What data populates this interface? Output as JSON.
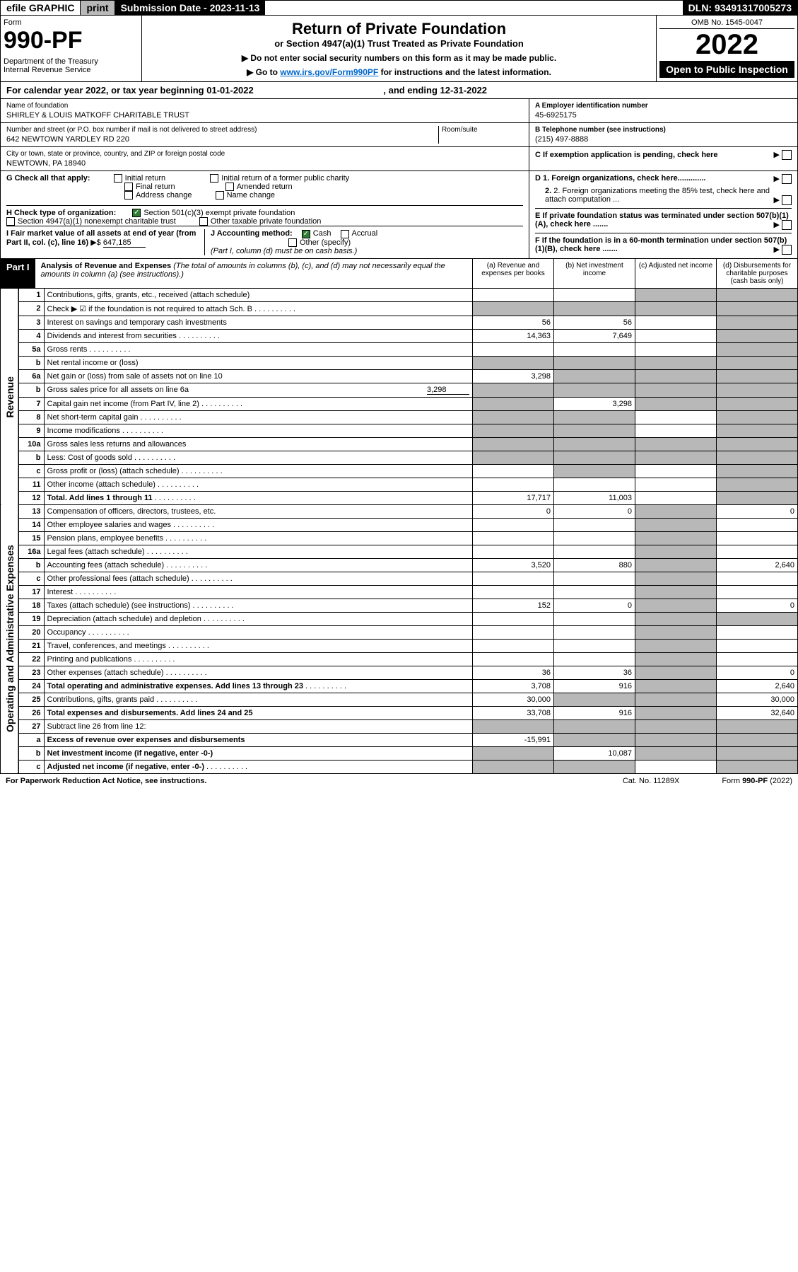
{
  "topbar": {
    "efile": "efile GRAPHIC",
    "print": "print",
    "subdate": "Submission Date - 2023-11-13",
    "dln": "DLN: 93491317005273"
  },
  "header": {
    "form_label": "Form",
    "form_no": "990-PF",
    "dept": "Department of the Treasury\nInternal Revenue Service",
    "title": "Return of Private Foundation",
    "subtitle": "or Section 4947(a)(1) Trust Treated as Private Foundation",
    "note1": "▶ Do not enter social security numbers on this form as it may be made public.",
    "note2_pre": "▶ Go to ",
    "note2_link": "www.irs.gov/Form990PF",
    "note2_post": " for instructions and the latest information.",
    "omb": "OMB No. 1545-0047",
    "year": "2022",
    "open": "Open to Public Inspection"
  },
  "calendar": {
    "text_pre": "For calendar year 2022, or tax year beginning ",
    "begin": "01-01-2022",
    "mid": " , and ending ",
    "end": "12-31-2022"
  },
  "info": {
    "name_lbl": "Name of foundation",
    "name": "SHIRLEY & LOUIS MATKOFF CHARITABLE TRUST",
    "addr_lbl": "Number and street (or P.O. box number if mail is not delivered to street address)",
    "addr": "642 NEWTOWN YARDLEY RD 220",
    "room_lbl": "Room/suite",
    "city_lbl": "City or town, state or province, country, and ZIP or foreign postal code",
    "city": "NEWTOWN, PA  18940",
    "ein_lbl": "A Employer identification number",
    "ein": "45-6925175",
    "tel_lbl": "B Telephone number (see instructions)",
    "tel": "(215) 497-8888",
    "c_lbl": "C If exemption application is pending, check here",
    "d1": "D 1. Foreign organizations, check here.............",
    "d2": "2. Foreign organizations meeting the 85% test, check here and attach computation ...",
    "e": "E  If private foundation status was terminated under section 507(b)(1)(A), check here .......",
    "f": "F  If the foundation is in a 60-month termination under section 507(b)(1)(B), check here .......",
    "g_lbl": "G Check all that apply:",
    "g_opts": [
      "Initial return",
      "Final return",
      "Address change",
      "Initial return of a former public charity",
      "Amended return",
      "Name change"
    ],
    "h_lbl": "H Check type of organization:",
    "h1": "Section 501(c)(3) exempt private foundation",
    "h2": "Section 4947(a)(1) nonexempt charitable trust",
    "h3": "Other taxable private foundation",
    "i_lbl": "I Fair market value of all assets at end of year (from Part II, col. (c), line 16)",
    "i_val": "647,185",
    "j_lbl": "J Accounting method:",
    "j_cash": "Cash",
    "j_accrual": "Accrual",
    "j_other": "Other (specify)",
    "j_note": "(Part I, column (d) must be on cash basis.)"
  },
  "part1": {
    "label": "Part I",
    "title": "Analysis of Revenue and Expenses",
    "note": "(The total of amounts in columns (b), (c), and (d) may not necessarily equal the amounts in column (a) (see instructions).)",
    "col_a": "(a)   Revenue and expenses per books",
    "col_b": "(b)   Net investment income",
    "col_c": "(c)   Adjusted net income",
    "col_d": "(d)  Disbursements for charitable purposes (cash basis only)"
  },
  "side": {
    "rev": "Revenue",
    "exp": "Operating and Administrative Expenses"
  },
  "rows": [
    {
      "n": "1",
      "d": "Contributions, gifts, grants, etc., received (attach schedule)",
      "a": "",
      "b": "",
      "c": "shade",
      "dd": "shade"
    },
    {
      "n": "2",
      "d": "Check ▶ ☑ if the foundation is not required to attach Sch. B",
      "dots": true,
      "a": "shade",
      "b": "shade",
      "c": "shade",
      "dd": "shade"
    },
    {
      "n": "3",
      "d": "Interest on savings and temporary cash investments",
      "a": "56",
      "b": "56",
      "c": "",
      "dd": "shade"
    },
    {
      "n": "4",
      "d": "Dividends and interest from securities",
      "dots": true,
      "a": "14,363",
      "b": "7,649",
      "c": "",
      "dd": "shade"
    },
    {
      "n": "5a",
      "d": "Gross rents",
      "dots": true,
      "a": "",
      "b": "",
      "c": "",
      "dd": "shade"
    },
    {
      "n": "b",
      "d": "Net rental income or (loss)",
      "a": "shade",
      "b": "shade",
      "c": "shade",
      "dd": "shade"
    },
    {
      "n": "6a",
      "d": "Net gain or (loss) from sale of assets not on line 10",
      "a": "3,298",
      "b": "shade",
      "c": "shade",
      "dd": "shade"
    },
    {
      "n": "b",
      "d": "Gross sales price for all assets on line 6a",
      "inline": "3,298",
      "a": "shade",
      "b": "shade",
      "c": "shade",
      "dd": "shade"
    },
    {
      "n": "7",
      "d": "Capital gain net income (from Part IV, line 2)",
      "dots": true,
      "a": "shade",
      "b": "3,298",
      "c": "shade",
      "dd": "shade"
    },
    {
      "n": "8",
      "d": "Net short-term capital gain",
      "dots": true,
      "a": "shade",
      "b": "shade",
      "c": "",
      "dd": "shade"
    },
    {
      "n": "9",
      "d": "Income modifications",
      "dots": true,
      "a": "shade",
      "b": "shade",
      "c": "",
      "dd": "shade"
    },
    {
      "n": "10a",
      "d": "Gross sales less returns and allowances",
      "a": "shade",
      "b": "shade",
      "c": "shade",
      "dd": "shade"
    },
    {
      "n": "b",
      "d": "Less: Cost of goods sold",
      "dots": true,
      "a": "shade",
      "b": "shade",
      "c": "shade",
      "dd": "shade"
    },
    {
      "n": "c",
      "d": "Gross profit or (loss) (attach schedule)",
      "dots": true,
      "a": "",
      "b": "shade",
      "c": "",
      "dd": "shade"
    },
    {
      "n": "11",
      "d": "Other income (attach schedule)",
      "dots": true,
      "a": "",
      "b": "",
      "c": "",
      "dd": "shade"
    },
    {
      "n": "12",
      "d": "Total. Add lines 1 through 11",
      "dots": true,
      "bold": true,
      "a": "17,717",
      "b": "11,003",
      "c": "",
      "dd": "shade"
    },
    {
      "n": "13",
      "d": "Compensation of officers, directors, trustees, etc.",
      "a": "0",
      "b": "0",
      "c": "shade",
      "dd": "0"
    },
    {
      "n": "14",
      "d": "Other employee salaries and wages",
      "dots": true,
      "a": "",
      "b": "",
      "c": "shade",
      "dd": ""
    },
    {
      "n": "15",
      "d": "Pension plans, employee benefits",
      "dots": true,
      "a": "",
      "b": "",
      "c": "shade",
      "dd": ""
    },
    {
      "n": "16a",
      "d": "Legal fees (attach schedule)",
      "dots": true,
      "a": "",
      "b": "",
      "c": "shade",
      "dd": ""
    },
    {
      "n": "b",
      "d": "Accounting fees (attach schedule)",
      "dots": true,
      "a": "3,520",
      "b": "880",
      "c": "shade",
      "dd": "2,640"
    },
    {
      "n": "c",
      "d": "Other professional fees (attach schedule)",
      "dots": true,
      "a": "",
      "b": "",
      "c": "shade",
      "dd": ""
    },
    {
      "n": "17",
      "d": "Interest",
      "dots": true,
      "a": "",
      "b": "",
      "c": "shade",
      "dd": ""
    },
    {
      "n": "18",
      "d": "Taxes (attach schedule) (see instructions)",
      "dots": true,
      "a": "152",
      "b": "0",
      "c": "shade",
      "dd": "0"
    },
    {
      "n": "19",
      "d": "Depreciation (attach schedule) and depletion",
      "dots": true,
      "a": "",
      "b": "",
      "c": "shade",
      "dd": "shade"
    },
    {
      "n": "20",
      "d": "Occupancy",
      "dots": true,
      "a": "",
      "b": "",
      "c": "shade",
      "dd": ""
    },
    {
      "n": "21",
      "d": "Travel, conferences, and meetings",
      "dots": true,
      "a": "",
      "b": "",
      "c": "shade",
      "dd": ""
    },
    {
      "n": "22",
      "d": "Printing and publications",
      "dots": true,
      "a": "",
      "b": "",
      "c": "shade",
      "dd": ""
    },
    {
      "n": "23",
      "d": "Other expenses (attach schedule)",
      "dots": true,
      "a": "36",
      "b": "36",
      "c": "shade",
      "dd": "0"
    },
    {
      "n": "24",
      "d": "Total operating and administrative expenses. Add lines 13 through 23",
      "dots": true,
      "bold": true,
      "a": "3,708",
      "b": "916",
      "c": "shade",
      "dd": "2,640"
    },
    {
      "n": "25",
      "d": "Contributions, gifts, grants paid",
      "dots": true,
      "a": "30,000",
      "b": "shade",
      "c": "shade",
      "dd": "30,000"
    },
    {
      "n": "26",
      "d": "Total expenses and disbursements. Add lines 24 and 25",
      "bold": true,
      "a": "33,708",
      "b": "916",
      "c": "shade",
      "dd": "32,640"
    },
    {
      "n": "27",
      "d": "Subtract line 26 from line 12:",
      "a": "shade",
      "b": "shade",
      "c": "shade",
      "dd": "shade"
    },
    {
      "n": "a",
      "d": "Excess of revenue over expenses and disbursements",
      "bold": true,
      "a": "-15,991",
      "b": "shade",
      "c": "shade",
      "dd": "shade"
    },
    {
      "n": "b",
      "d": "Net investment income (if negative, enter -0-)",
      "bold": true,
      "a": "shade",
      "b": "10,087",
      "c": "shade",
      "dd": "shade"
    },
    {
      "n": "c",
      "d": "Adjusted net income (if negative, enter -0-)",
      "dots": true,
      "bold": true,
      "a": "shade",
      "b": "shade",
      "c": "",
      "dd": "shade"
    }
  ],
  "footer": {
    "left": "For Paperwork Reduction Act Notice, see instructions.",
    "mid": "Cat. No. 11289X",
    "right": "Form 990-PF (2022)"
  },
  "colors": {
    "shade": "#b8b8b8",
    "link": "#0066cc",
    "check": "#2e7d32"
  }
}
